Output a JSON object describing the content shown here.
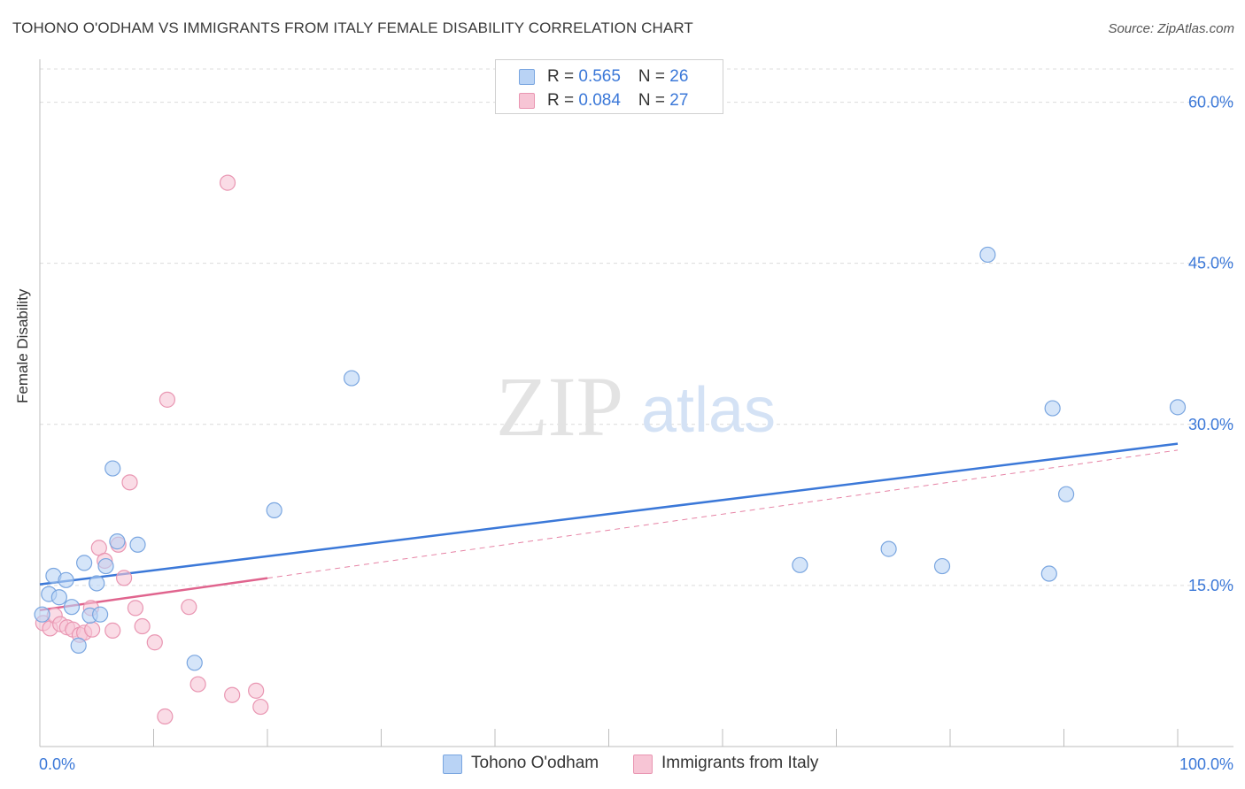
{
  "header": {
    "title": "TOHONO O'ODHAM VS IMMIGRANTS FROM ITALY FEMALE DISABILITY CORRELATION CHART",
    "source": "Source: ZipAtlas.com"
  },
  "watermark": {
    "zip": "ZIP",
    "atlas": "atlas"
  },
  "legend_top": {
    "rows": [
      {
        "r_label": "R = ",
        "r_value": "0.565",
        "n_label": "N = ",
        "n_value": "26",
        "fill": "#b9d3f5",
        "stroke": "#7aa6e0"
      },
      {
        "r_label": "R = ",
        "r_value": "0.084",
        "n_label": "N = ",
        "n_value": "27",
        "fill": "#f7c5d5",
        "stroke": "#e996b2"
      }
    ]
  },
  "legend_bottom": {
    "items": [
      {
        "label": "Tohono O'odham",
        "fill": "#b9d3f5",
        "stroke": "#7aa6e0"
      },
      {
        "label": "Immigrants from Italy",
        "fill": "#f7c5d5",
        "stroke": "#e996b2"
      }
    ]
  },
  "chart_data": {
    "type": "scatter",
    "title": "TOHONO O'ODHAM VS IMMIGRANTS FROM ITALY FEMALE DISABILITY CORRELATION CHART",
    "xlabel": "",
    "ylabel": "Female Disability",
    "xlim": [
      0,
      100
    ],
    "ylim": [
      0,
      64
    ],
    "x_tick_labels": [
      {
        "value": 0,
        "label": "0.0%"
      },
      {
        "value": 100,
        "label": "100.0%"
      }
    ],
    "x_minor_ticks": [
      10,
      20,
      30,
      40,
      50,
      60,
      70,
      80,
      90,
      100
    ],
    "y_ticks": [
      {
        "value": 15,
        "label": "15.0%"
      },
      {
        "value": 30,
        "label": "30.0%"
      },
      {
        "value": 45,
        "label": "45.0%"
      },
      {
        "value": 60,
        "label": "60.0%"
      }
    ],
    "grid": true,
    "series": [
      {
        "name": "Tohono O'odham",
        "color": "#3b78d8",
        "fill": "#b9d3f5",
        "stroke": "#7aa6e0",
        "points": [
          [
            0.2,
            12.3
          ],
          [
            0.8,
            14.2
          ],
          [
            1.2,
            15.9
          ],
          [
            1.7,
            13.9
          ],
          [
            2.3,
            15.5
          ],
          [
            2.8,
            13.0
          ],
          [
            3.4,
            9.4
          ],
          [
            3.9,
            17.1
          ],
          [
            4.4,
            12.2
          ],
          [
            5.0,
            15.2
          ],
          [
            5.3,
            12.3
          ],
          [
            5.8,
            16.8
          ],
          [
            6.4,
            25.9
          ],
          [
            6.8,
            19.1
          ],
          [
            8.6,
            18.8
          ],
          [
            13.6,
            7.8
          ],
          [
            20.6,
            22.0
          ],
          [
            27.4,
            34.3
          ],
          [
            66.8,
            16.9
          ],
          [
            74.6,
            18.4
          ],
          [
            79.3,
            16.8
          ],
          [
            83.3,
            45.8
          ],
          [
            88.7,
            16.1
          ],
          [
            89.0,
            31.5
          ],
          [
            90.2,
            23.5
          ],
          [
            100.0,
            31.6
          ]
        ],
        "trend": {
          "x0": 0,
          "y0": 15.1,
          "x1": 100,
          "y1": 28.2,
          "style": "solid"
        }
      },
      {
        "name": "Immigrants from Italy",
        "color": "#e0648e",
        "fill": "#f7c5d5",
        "stroke": "#e996b2",
        "points": [
          [
            0.3,
            11.5
          ],
          [
            0.9,
            11.0
          ],
          [
            1.3,
            12.2
          ],
          [
            1.8,
            11.4
          ],
          [
            2.4,
            11.1
          ],
          [
            2.9,
            10.9
          ],
          [
            3.5,
            10.4
          ],
          [
            3.9,
            10.6
          ],
          [
            4.5,
            12.9
          ],
          [
            4.6,
            10.9
          ],
          [
            5.2,
            18.5
          ],
          [
            5.7,
            17.3
          ],
          [
            6.4,
            10.8
          ],
          [
            6.9,
            18.8
          ],
          [
            7.4,
            15.7
          ],
          [
            7.9,
            24.6
          ],
          [
            8.4,
            12.9
          ],
          [
            9.0,
            11.2
          ],
          [
            10.1,
            9.7
          ],
          [
            11.0,
            2.8
          ],
          [
            11.2,
            32.3
          ],
          [
            13.1,
            13.0
          ],
          [
            13.9,
            5.8
          ],
          [
            16.5,
            52.5
          ],
          [
            16.9,
            4.8
          ],
          [
            19.0,
            5.2
          ],
          [
            19.4,
            3.7
          ]
        ],
        "trend": {
          "x0": 0,
          "y0": 12.7,
          "x1": 100,
          "y1": 27.6,
          "solid_until": 20,
          "style": "solid-then-dashed"
        }
      }
    ]
  }
}
